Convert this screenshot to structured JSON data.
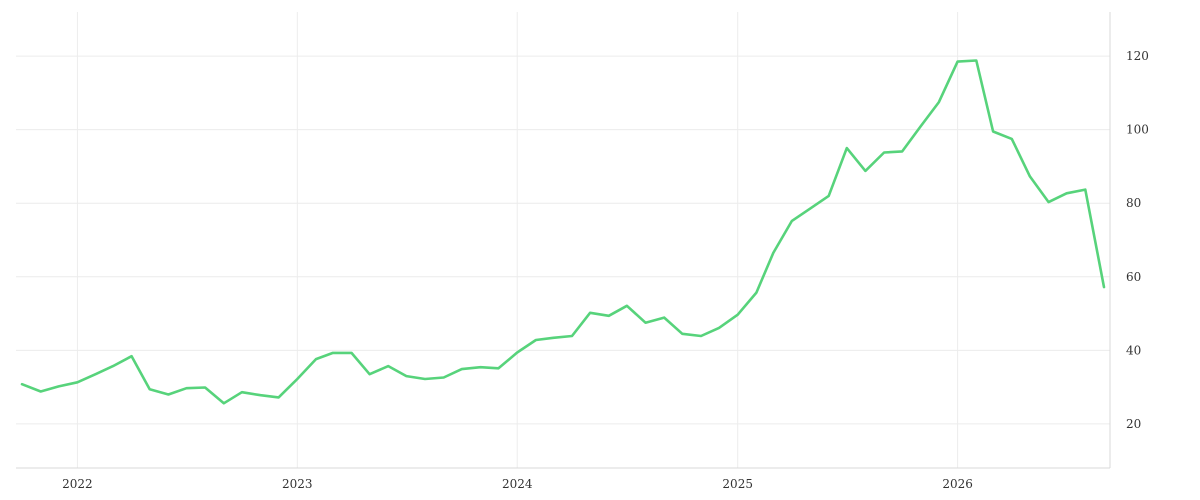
{
  "chart_data": {
    "type": "line",
    "title": "",
    "xlabel": "",
    "ylabel": "",
    "grid": true,
    "legend": "none",
    "xlim": [
      "2021-10-01",
      "2026-09-01"
    ],
    "ylim": [
      8,
      132
    ],
    "x_ticks": [
      "2022",
      "2023",
      "2024",
      "2025",
      "2026"
    ],
    "y_ticks": [
      20,
      40,
      60,
      80,
      100,
      120
    ],
    "colors": {
      "line": "#57d37b"
    },
    "series": [
      {
        "x": [
          "2021-10-01",
          "2021-11-01",
          "2021-12-01",
          "2022-01-01",
          "2022-02-01",
          "2022-03-01",
          "2022-04-01",
          "2022-05-01",
          "2022-06-01",
          "2022-07-01",
          "2022-08-01",
          "2022-09-01",
          "2022-10-01",
          "2022-11-01",
          "2022-12-01",
          "2023-01-01",
          "2023-02-01",
          "2023-03-01",
          "2023-04-01",
          "2023-05-01",
          "2023-06-01",
          "2023-07-01",
          "2023-08-01",
          "2023-09-01",
          "2023-10-01",
          "2023-11-01",
          "2023-12-01",
          "2024-01-01",
          "2024-02-01",
          "2024-03-01",
          "2024-04-01",
          "2024-05-01",
          "2024-06-01",
          "2024-07-01",
          "2024-08-01",
          "2024-09-01",
          "2024-10-01",
          "2024-11-01",
          "2024-12-01",
          "2025-01-01",
          "2025-02-01",
          "2025-03-01",
          "2025-04-01",
          "2025-05-01",
          "2025-06-01",
          "2025-07-01",
          "2025-08-01",
          "2025-09-01",
          "2025-10-01",
          "2025-11-01",
          "2025-12-01",
          "2026-01-01",
          "2026-02-01",
          "2026-03-01",
          "2026-04-01",
          "2026-05-01",
          "2026-06-01",
          "2026-07-01",
          "2026-08-01",
          "2026-09-01"
        ],
        "values": [
          30.8,
          28.8,
          30.2,
          31.3,
          33.6,
          35.7,
          38.4,
          29.4,
          28.0,
          29.7,
          29.9,
          25.6,
          28.6,
          27.8,
          27.2,
          32.2,
          37.6,
          39.3,
          39.3,
          33.5,
          35.7,
          33.0,
          32.2,
          32.6,
          34.9,
          35.4,
          35.1,
          39.4,
          42.8,
          43.4,
          43.9,
          50.2,
          49.4,
          52.1,
          47.5,
          48.9,
          44.5,
          43.9,
          46.1,
          49.7,
          55.7,
          66.5,
          75.2,
          78.5,
          82.0,
          95.0,
          88.8,
          93.8,
          94.1,
          101.0,
          107.5,
          118.5,
          118.8,
          99.5,
          97.5,
          87.3,
          80.3,
          82.7,
          83.7,
          57.2
        ]
      }
    ]
  }
}
